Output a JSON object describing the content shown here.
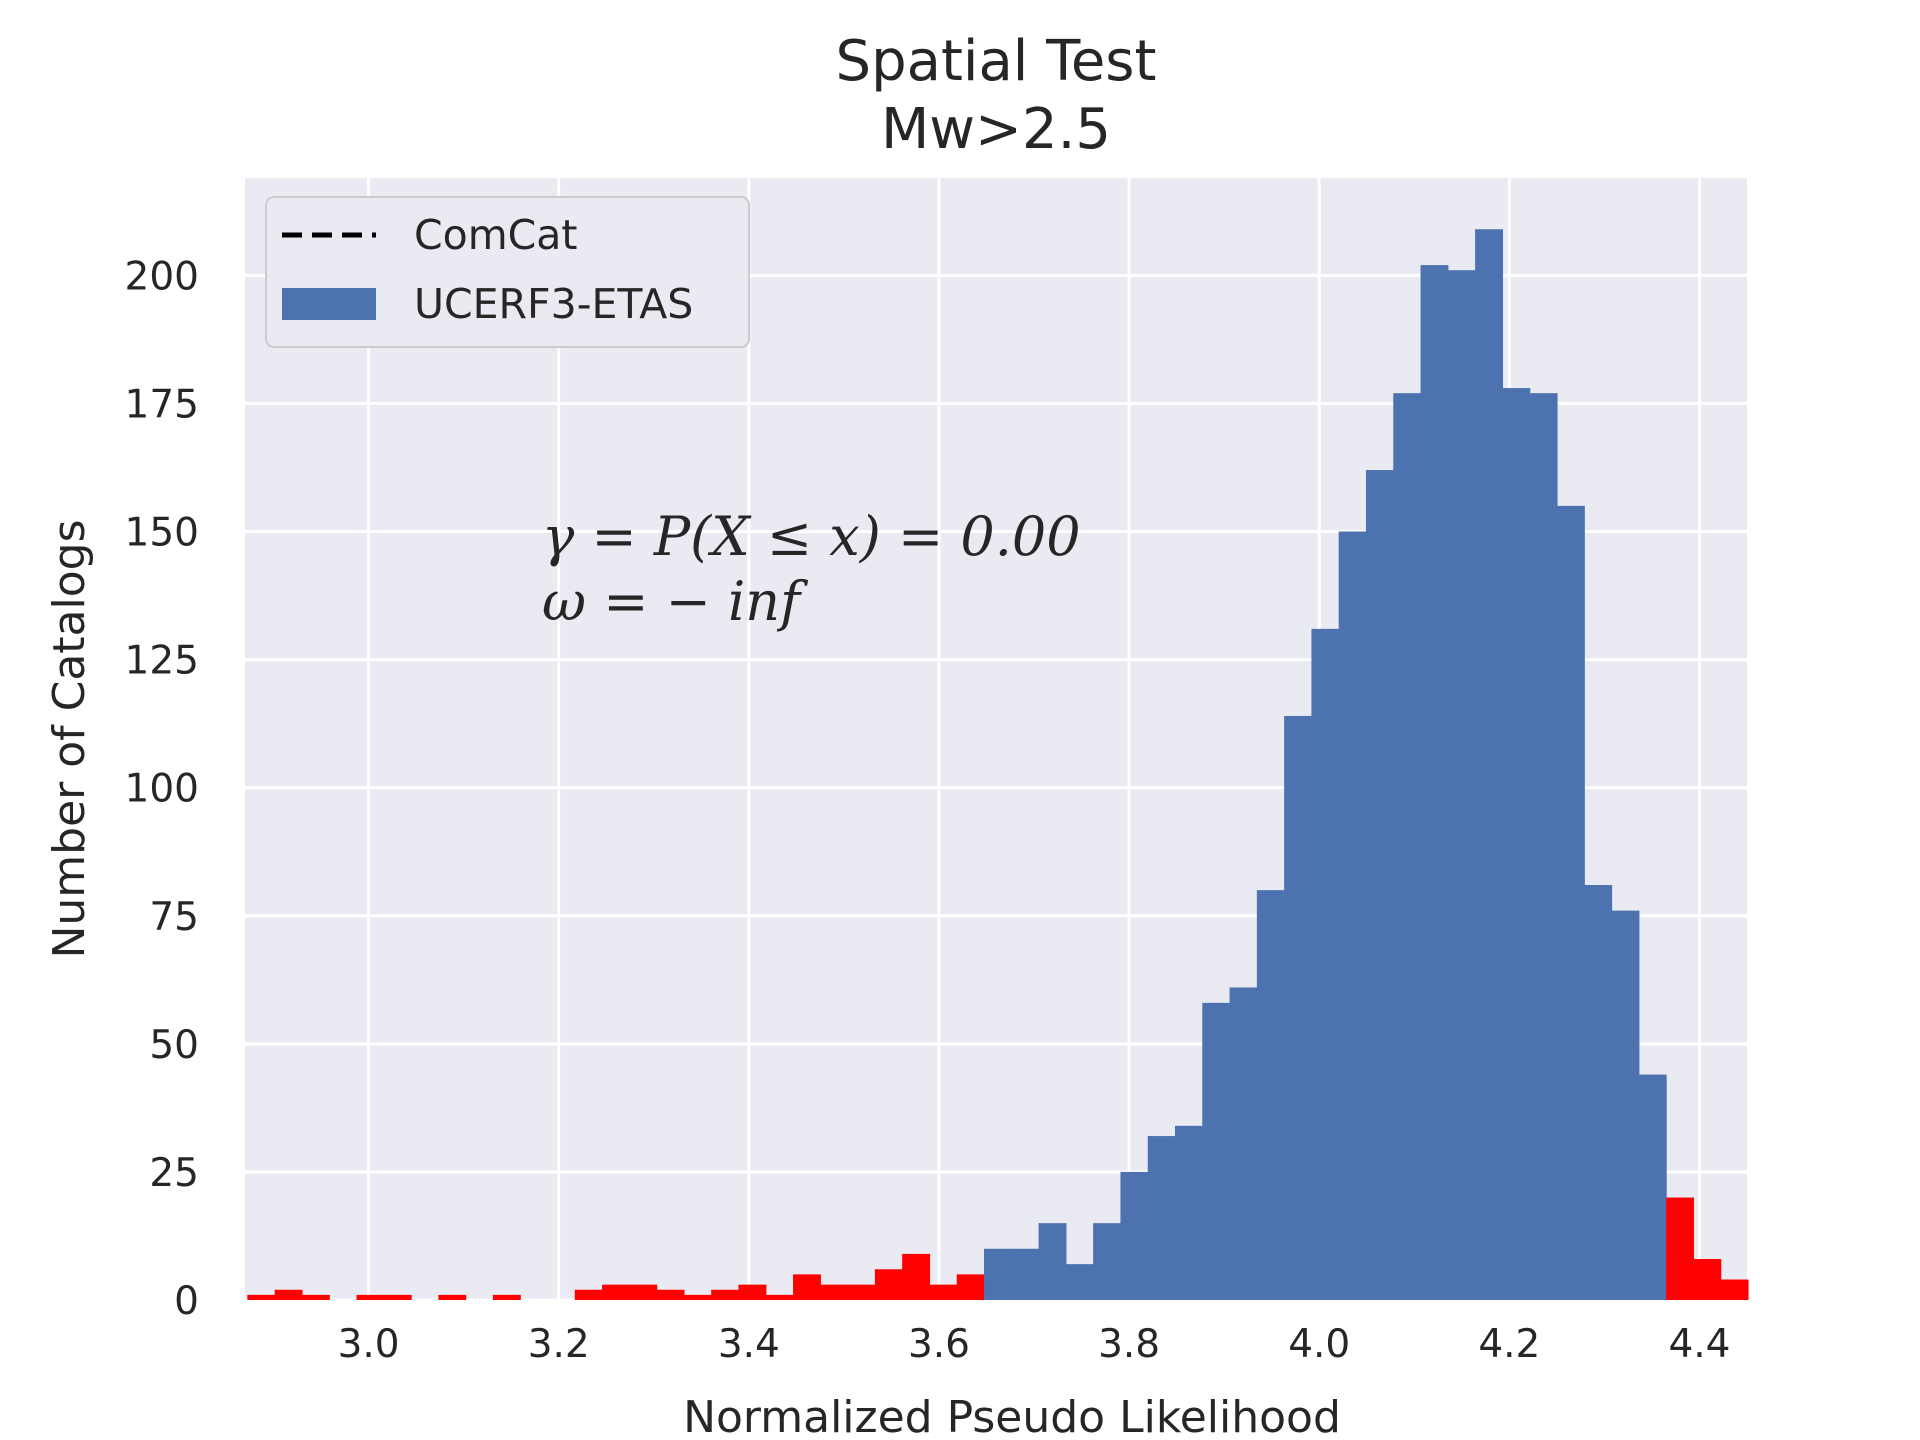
{
  "chart_data": {
    "type": "bar",
    "title": "Spatial Test",
    "subtitle": "Mw>2.5",
    "xlabel": "Normalized Pseudo Likelihood",
    "ylabel": "Number of Catalogs",
    "xlim": [
      2.87,
      4.45
    ],
    "ylim": [
      0,
      219
    ],
    "xticks": [
      3.0,
      3.2,
      3.4,
      3.6,
      3.8,
      4.0,
      4.2,
      4.4
    ],
    "xtick_labels": [
      "3.0",
      "3.2",
      "3.4",
      "3.6",
      "3.8",
      "4.0",
      "4.2",
      "4.4"
    ],
    "yticks": [
      0,
      25,
      50,
      75,
      100,
      125,
      150,
      175,
      200
    ],
    "ytick_labels": [
      "0",
      "25",
      "50",
      "75",
      "100",
      "125",
      "150",
      "175",
      "200"
    ],
    "grid": true,
    "background": "#eaeaf2",
    "grid_color": "#ffffff",
    "legend": {
      "placement": "top-left",
      "entries": [
        {
          "label": "ComCat",
          "style": "dashed-line",
          "color": "#000000"
        },
        {
          "label": "UCERF3-ETAS",
          "style": "patch",
          "color": "#4c72b0"
        }
      ]
    },
    "annotation": {
      "line1": "γ = P(X ≤ x) = 0.00",
      "line2": "ω = − inf"
    },
    "bin_start": 2.8725,
    "bin_width": 0.0287,
    "counts": [
      1,
      2,
      1,
      0,
      1,
      1,
      0,
      1,
      0,
      1,
      0,
      0,
      2,
      3,
      3,
      2,
      1,
      2,
      3,
      1,
      5,
      3,
      3,
      6,
      9,
      3,
      5,
      10,
      10,
      15,
      7,
      15,
      25,
      32,
      34,
      58,
      61,
      80,
      114,
      131,
      150,
      162,
      177,
      202,
      201,
      209,
      178,
      177,
      155,
      81,
      76,
      44,
      20,
      8,
      4
    ],
    "highlight_color": "#ff0000",
    "main_color": "#4c72b0",
    "main_range_bins": [
      27,
      51
    ]
  }
}
